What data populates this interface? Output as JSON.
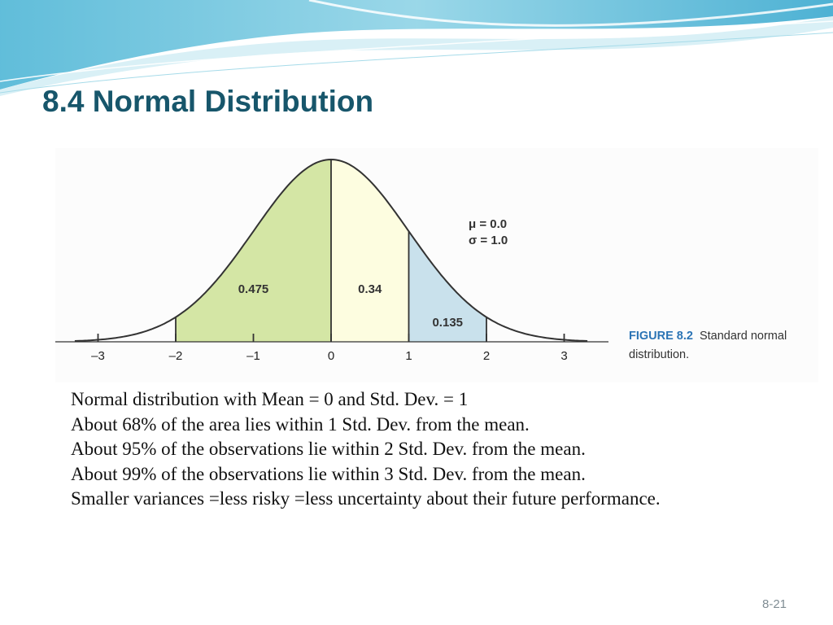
{
  "slide": {
    "title": "8.4 Normal Distribution",
    "page_number": "8-21"
  },
  "figure": {
    "label": "FIGURE 8.2",
    "caption": "Standard normal distribution."
  },
  "body_lines": [
    "Normal distribution with Mean = 0 and Std. Dev. = 1",
    "About 68% of the area lies within 1 Std. Dev. from the mean.",
    "About 95% of the observations lie within 2 Std. Dev. from the mean.",
    "About 99% of the observations lie within 3 Std. Dev. from the mean.",
    "Smaller variances =less risky =less uncertainty about their future performance."
  ],
  "colors": {
    "title": "#17566b",
    "figure_label": "#2b74b5",
    "region_left": "#d4e6a5",
    "region_center": "#fdfde0",
    "region_right": "#c9e1ec",
    "curve": "#333333"
  },
  "chart_data": {
    "type": "area",
    "distribution": "standard normal",
    "mean": 0.0,
    "std_dev": 1.0,
    "parameter_labels": [
      "μ = 0.0",
      "σ = 1.0"
    ],
    "x_ticks": [
      -3,
      -2,
      -1,
      0,
      1,
      2,
      3
    ],
    "x_tick_labels": [
      "–3",
      "–2",
      "–1",
      "0",
      "1",
      "2",
      "3"
    ],
    "xlim": [
      -3.3,
      3.3
    ],
    "shaded_regions": [
      {
        "from": -2,
        "to": 0,
        "area_label": "0.475",
        "color": "#d4e6a5"
      },
      {
        "from": 0,
        "to": 1,
        "area_label": "0.34",
        "color": "#fdfde0"
      },
      {
        "from": 1,
        "to": 2,
        "area_label": "0.135",
        "color": "#c9e1ec"
      }
    ],
    "title": "",
    "xlabel": "",
    "ylabel": "",
    "grid": false
  }
}
